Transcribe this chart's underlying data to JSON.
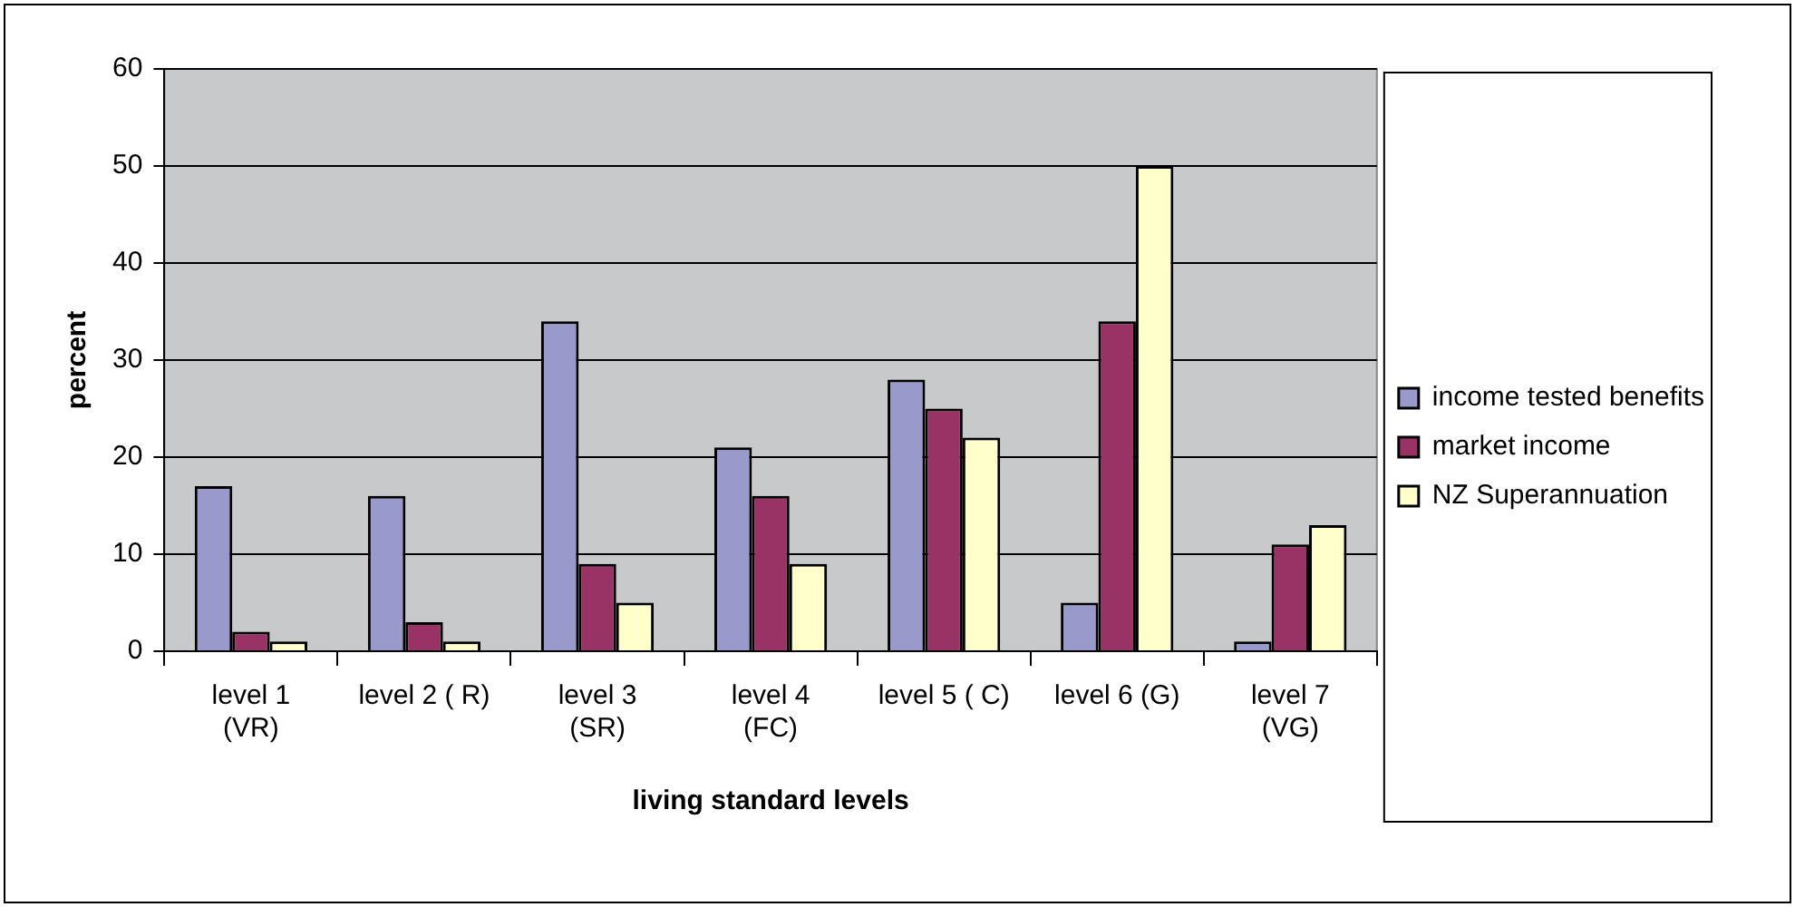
{
  "chart_data": {
    "type": "bar",
    "xlabel": "living standard levels",
    "ylabel": "percent",
    "categories": [
      "level 1 (VR)",
      "level 2 ( R)",
      "level 3 (SR)",
      "level 4 (FC)",
      "level 5 ( C)",
      "level 6 (G)",
      "level 7 (VG)"
    ],
    "series": [
      {
        "name": "income tested benefits",
        "color": "#9999cc",
        "values": [
          17,
          16,
          34,
          21,
          28,
          5,
          1
        ]
      },
      {
        "name": "market income",
        "color": "#993366",
        "values": [
          2,
          3,
          9,
          16,
          25,
          34,
          11
        ]
      },
      {
        "name": "NZ Superannuation",
        "color": "#ffffcc",
        "values": [
          1,
          1,
          5,
          9,
          22,
          50,
          13
        ]
      }
    ],
    "ylim": [
      0,
      60
    ],
    "yticks": [
      0,
      10,
      20,
      30,
      40,
      50,
      60
    ],
    "grid": "y",
    "legend": "right"
  }
}
